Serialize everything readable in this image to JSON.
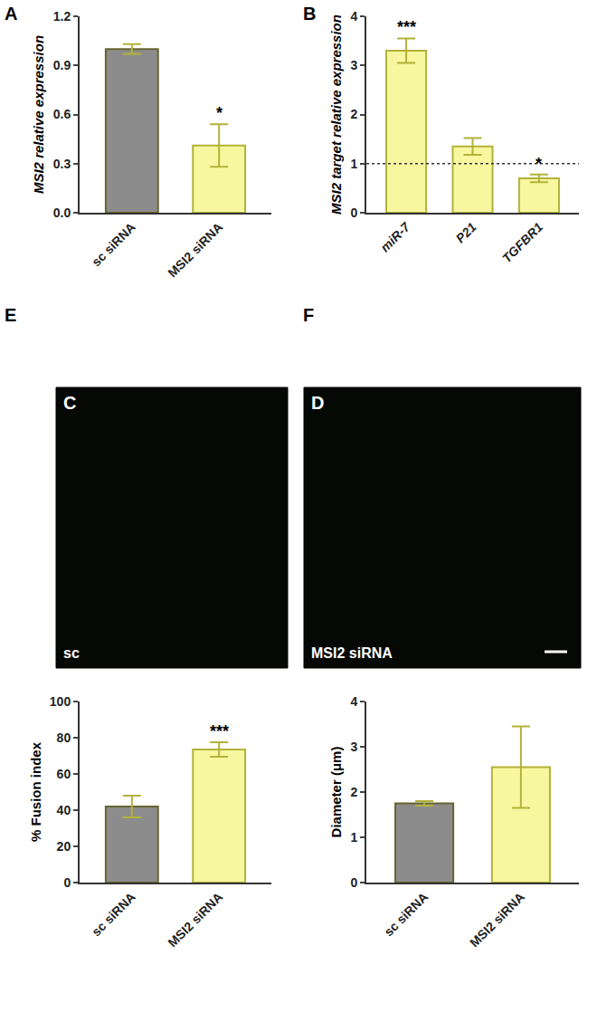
{
  "chart_data": [
    {
      "panel": "A",
      "type": "bar",
      "categories": [
        "sc siRNA",
        "MSI2 siRNA"
      ],
      "values": [
        1.0,
        0.41
      ],
      "errors": [
        0.03,
        0.13
      ],
      "significance": [
        null,
        "*"
      ],
      "colors": [
        "#8c8c8c",
        "#f7f7a0"
      ],
      "y_label": "MSI2 relative expression",
      "ylim": [
        0,
        1.2
      ],
      "yticks": [
        {
          "value": 0,
          "label": "0.0"
        },
        0.3,
        0.6,
        0.9,
        1.2
      ],
      "grid": false
    },
    {
      "panel": "B",
      "type": "bar",
      "categories": [
        "miR-7",
        "P21",
        "TGFBR1"
      ],
      "values": [
        3.3,
        1.35,
        0.7
      ],
      "errors": [
        0.25,
        0.17,
        0.08
      ],
      "significance": [
        "***",
        null,
        "*"
      ],
      "color": "#f7f7a0",
      "y_label": "MSI2 target relative expression",
      "ylim": [
        0,
        4
      ],
      "yticks": [
        0,
        1,
        2,
        3,
        4
      ],
      "reference_line": 1,
      "line_style": "dotted",
      "grid": false
    },
    {
      "panel": "E",
      "type": "bar",
      "categories": [
        "sc siRNA",
        "MSI2 siRNA"
      ],
      "values": [
        42,
        73.5
      ],
      "errors": [
        6,
        4
      ],
      "significance": [
        null,
        "***"
      ],
      "colors": [
        "#8c8c8c",
        "#f7f7a0"
      ],
      "y_label": "% Fusion index",
      "ylim": [
        0,
        100
      ],
      "yticks": [
        0,
        20,
        40,
        60,
        80,
        100
      ],
      "grid": false
    },
    {
      "panel": "F",
      "type": "bar",
      "categories": [
        "sc siRNA",
        "MSI2 siRNA"
      ],
      "values": [
        1.75,
        2.55
      ],
      "errors": [
        0.05,
        0.9
      ],
      "significance": [
        null,
        null
      ],
      "colors": [
        "#8c8c8c",
        "#f7f7a0"
      ],
      "y_label": "Diameter (μm)",
      "ylim": [
        0,
        4
      ],
      "yticks": [
        0,
        1,
        2,
        3,
        4
      ],
      "grid": false
    }
  ],
  "images": [
    {
      "panel": "C",
      "label": "sc"
    },
    {
      "panel": "D",
      "label": "MSI2 siRNA"
    }
  ]
}
